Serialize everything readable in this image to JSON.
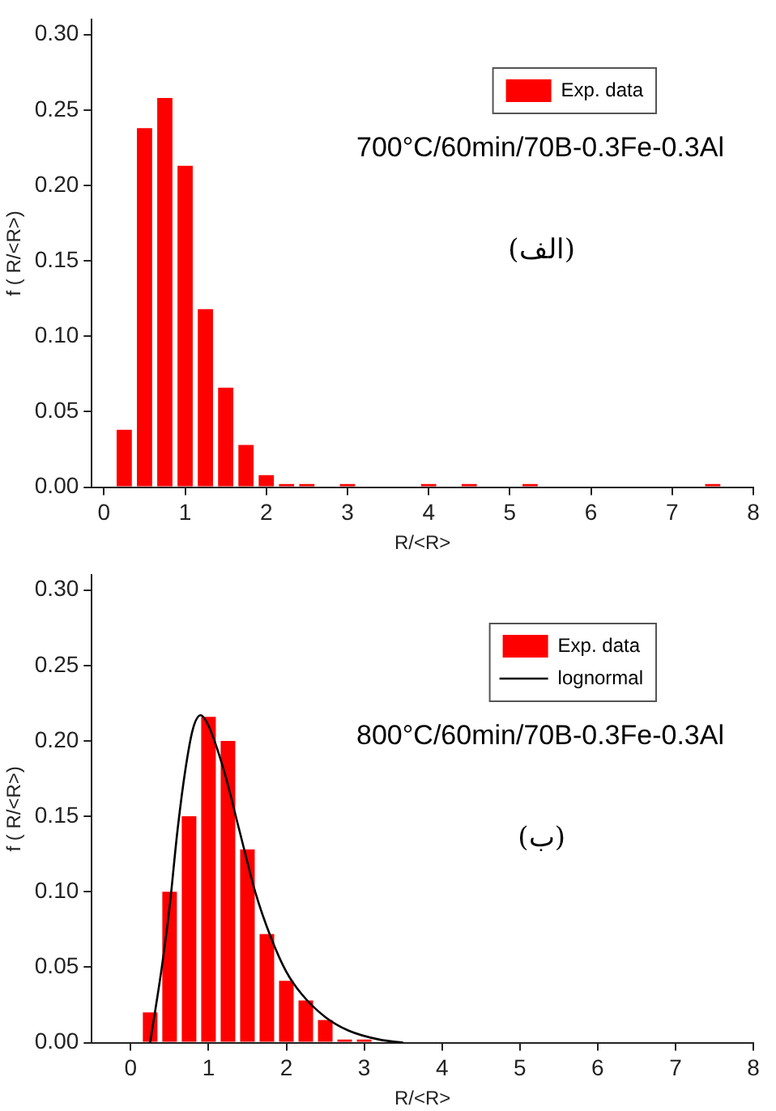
{
  "chart_data": [
    {
      "type": "bar",
      "xlabel": "R/<R>",
      "ylabel": "f ( R/<R>)",
      "xlim": [
        -0.15,
        8
      ],
      "xticks": [
        0,
        1,
        2,
        3,
        4,
        5,
        6,
        7,
        8
      ],
      "ylim": [
        0,
        0.31
      ],
      "yticks": [
        {
          "value": 0,
          "label": "0.00"
        },
        {
          "value": 0.05,
          "label": "0.05"
        },
        {
          "value": 0.1,
          "label": "0.10"
        },
        {
          "value": 0.15,
          "label": "0.15"
        },
        {
          "value": 0.2,
          "label": "0.20"
        },
        {
          "value": 0.25,
          "label": "0.25"
        },
        {
          "value": 0.3,
          "label": "0.30"
        }
      ],
      "legend": "top right",
      "grid": false,
      "annotations": [
        "700°C/60min/70B-0.3Fe-0.3Al",
        "(الف)"
      ],
      "series": [
        {
          "name": "Exp. data",
          "color": "#ff0000",
          "x": [
            0.25,
            0.5,
            0.75,
            1.0,
            1.25,
            1.5,
            1.75,
            2.0,
            2.25,
            2.5,
            3.0,
            4.0,
            4.5,
            5.25,
            7.5
          ],
          "values": [
            0.038,
            0.238,
            0.258,
            0.213,
            0.118,
            0.066,
            0.028,
            0.008,
            0.002,
            0.002,
            0.002,
            0.002,
            0.002,
            0.002,
            0.002
          ]
        }
      ]
    },
    {
      "type": "bar",
      "xlabel": "R/<R>",
      "ylabel": "f ( R/<R>)",
      "xlim": [
        -0.5,
        8
      ],
      "xticks": [
        0,
        1,
        2,
        3,
        4,
        5,
        6,
        7,
        8
      ],
      "ylim": [
        0,
        0.31
      ],
      "yticks": [
        {
          "value": 0,
          "label": "0.00"
        },
        {
          "value": 0.05,
          "label": "0.05"
        },
        {
          "value": 0.1,
          "label": "0.10"
        },
        {
          "value": 0.15,
          "label": "0.15"
        },
        {
          "value": 0.2,
          "label": "0.20"
        },
        {
          "value": 0.25,
          "label": "0.25"
        },
        {
          "value": 0.3,
          "label": "0.30"
        }
      ],
      "legend": "top right",
      "grid": false,
      "annotations": [
        "800°C/60min/70B-0.3Fe-0.3Al",
        "(ب)"
      ],
      "series": [
        {
          "name": "Exp. data",
          "color": "#ff0000",
          "x": [
            0.25,
            0.5,
            0.75,
            1.0,
            1.25,
            1.5,
            1.75,
            2.0,
            2.25,
            2.5,
            2.75,
            3.0
          ],
          "values": [
            0.02,
            0.1,
            0.15,
            0.216,
            0.2,
            0.128,
            0.072,
            0.041,
            0.028,
            0.015,
            0.002,
            0.002
          ]
        },
        {
          "name": "lognormal",
          "type": "line",
          "color": "#000000",
          "x": [
            0.25,
            0.4,
            0.5,
            0.6,
            0.7,
            0.8,
            0.9,
            1.0,
            1.2,
            1.4,
            1.6,
            1.8,
            2.0,
            2.2,
            2.5,
            2.8,
            3.2,
            3.5
          ],
          "values": [
            0,
            0.05,
            0.09,
            0.14,
            0.18,
            0.208,
            0.217,
            0.21,
            0.18,
            0.14,
            0.1,
            0.07,
            0.047,
            0.032,
            0.017,
            0.008,
            0.002,
            0
          ]
        }
      ]
    }
  ]
}
